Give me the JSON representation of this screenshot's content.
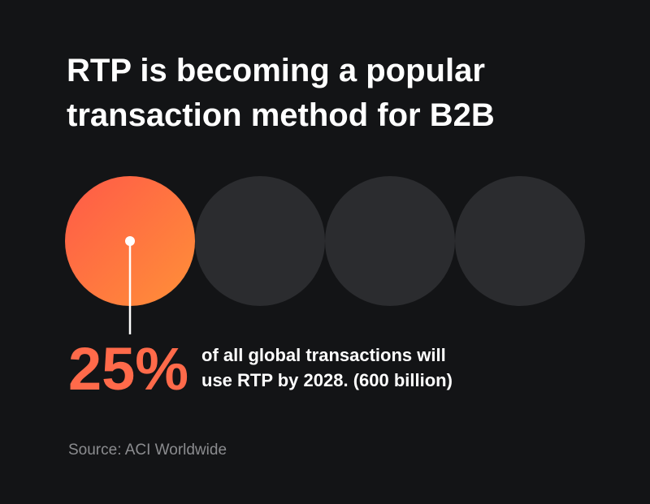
{
  "header": {
    "title_lines": [
      "RTP is becoming a popular",
      "transaction method for B2B"
    ]
  },
  "stat": {
    "value": "25%",
    "text_lines": [
      "of all global transactions will",
      "use RTP by 2028. (600 billion)"
    ]
  },
  "source": "Source: ACI Worldwide"
}
